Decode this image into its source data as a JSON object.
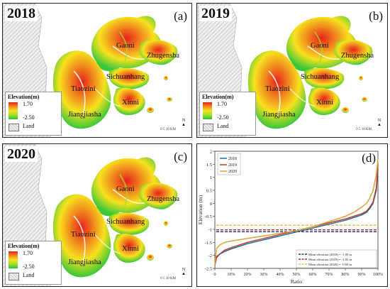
{
  "panels": [
    {
      "id": "a",
      "year": "2018",
      "letter": "(a)"
    },
    {
      "id": "b",
      "year": "2019",
      "letter": "(b)"
    },
    {
      "id": "c",
      "year": "2020",
      "letter": "(c)"
    }
  ],
  "places": {
    "gaoni": "Gaoni",
    "zhugensha": "Zhugensha",
    "sichuanhang": "Sichuanhang",
    "tiaozini": "Tiaozini",
    "xinni": "Xinni",
    "jiangjiasha": "Jiangjiasha"
  },
  "legend": {
    "title": "Elevation(m)",
    "high": "1.70",
    "low": "-2.50",
    "land": "Land"
  },
  "map_aux": {
    "north": "N",
    "scale": "0  5  10 KM"
  },
  "colors": {
    "high": "#e8201c",
    "mid": "#f7e21e",
    "low": "#25c43a",
    "land": "#d9d9d9"
  },
  "chart_panel": {
    "letter": "(d)"
  },
  "chart_data": {
    "type": "line",
    "xlabel": "Ratio",
    "ylabel": "Elevation (m)",
    "xlim": [
      0,
      100
    ],
    "ylim": [
      -2.5,
      2.0
    ],
    "xticks": [
      "0",
      "10%",
      "20%",
      "30%",
      "40%",
      "50%",
      "60%",
      "70%",
      "80%",
      "90%",
      "100%"
    ],
    "yticks": [
      "2",
      "1.5",
      "1",
      "0.5",
      "0",
      "-0.5",
      "-1",
      "-1.5",
      "-2",
      "-2.5"
    ],
    "x": [
      0,
      1,
      3,
      6,
      10,
      20,
      30,
      40,
      50,
      60,
      70,
      80,
      85,
      90,
      93,
      95,
      97,
      99,
      100
    ],
    "series": [
      {
        "name": "2018",
        "color": "#1f6f9a",
        "values": [
          -2.4,
          -2.05,
          -1.95,
          -1.85,
          -1.75,
          -1.55,
          -1.4,
          -1.25,
          -1.1,
          -0.95,
          -0.8,
          -0.65,
          -0.55,
          -0.45,
          -0.35,
          -0.2,
          0.0,
          0.5,
          1.3
        ]
      },
      {
        "name": "2019",
        "color": "#c0392b",
        "values": [
          -2.4,
          -2.1,
          -1.95,
          -1.8,
          -1.7,
          -1.5,
          -1.35,
          -1.2,
          -1.05,
          -0.9,
          -0.75,
          -0.6,
          -0.5,
          -0.4,
          -0.3,
          -0.15,
          0.05,
          0.6,
          1.5
        ]
      },
      {
        "name": "2020",
        "color": "#d9a23a",
        "values": [
          -2.4,
          -1.75,
          -1.6,
          -1.5,
          -1.45,
          -1.35,
          -1.25,
          -1.15,
          -1.05,
          -0.9,
          -0.7,
          -0.5,
          -0.35,
          -0.15,
          0.0,
          0.2,
          0.5,
          1.1,
          1.7
        ]
      }
    ],
    "mean_lines": [
      {
        "label": "Mean elevation (2018) = -1.09 m",
        "value": -1.09,
        "color": "#27308c"
      },
      {
        "label": "Mean elevation (2019) = -1.02 m",
        "value": -1.02,
        "color": "#b22a3a"
      },
      {
        "label": "Mean elevation (2020) = -0.84 m",
        "value": -0.84,
        "color": "#e2c15a"
      }
    ],
    "legend_position": "top-left",
    "grid": false
  }
}
